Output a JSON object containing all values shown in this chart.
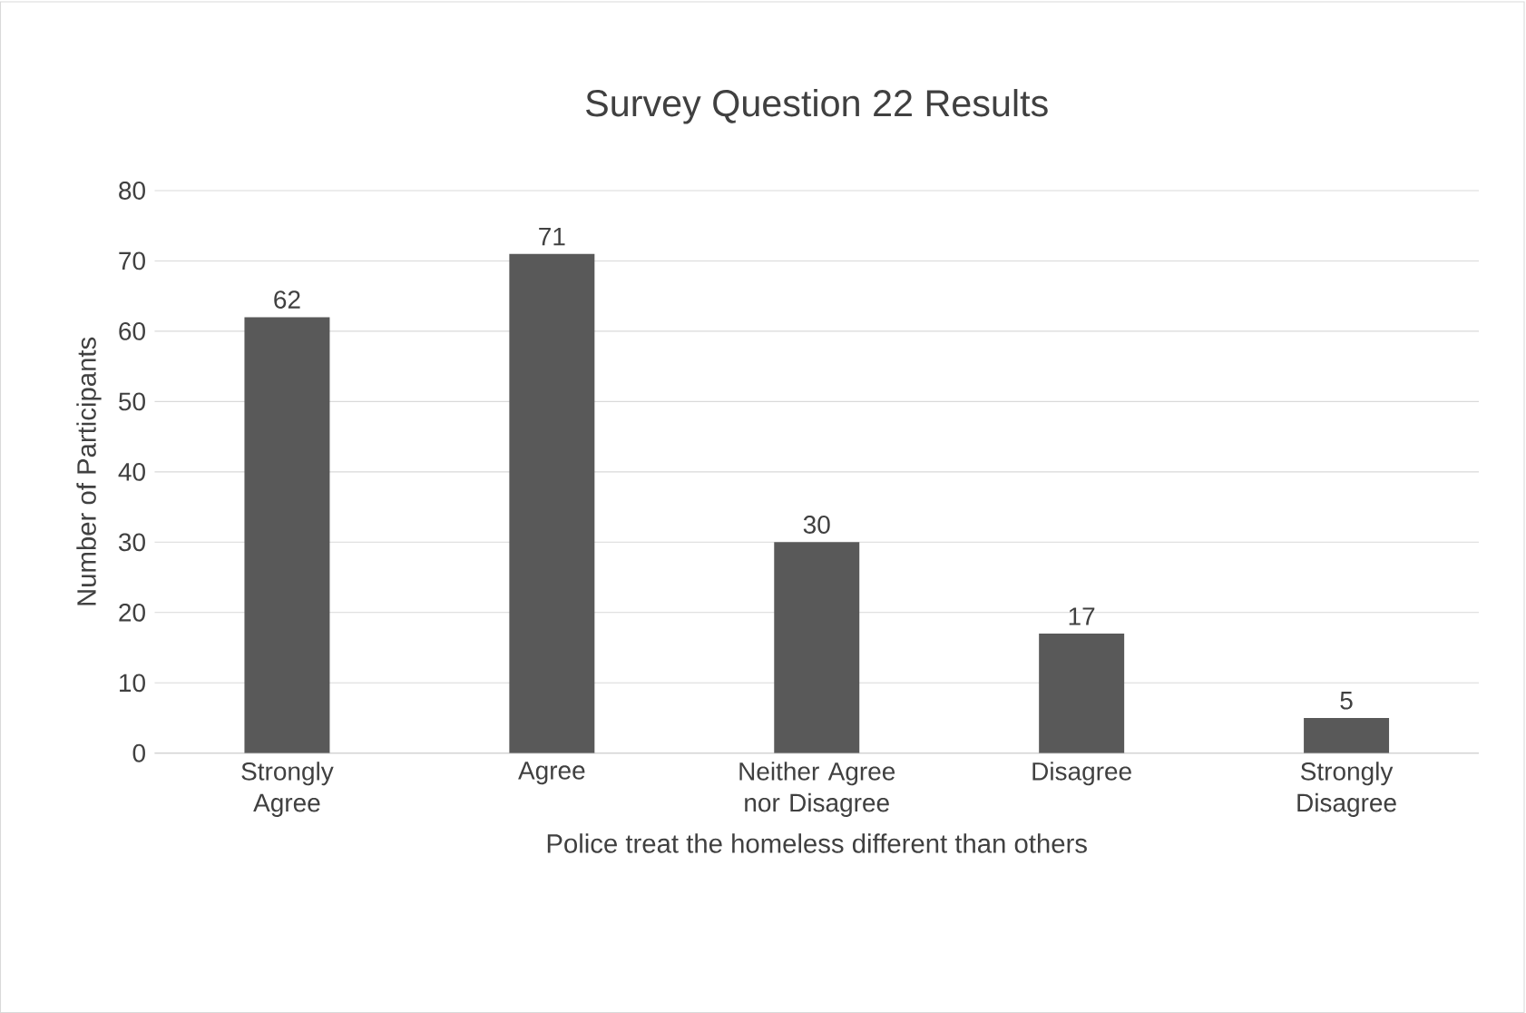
{
  "chart_data": {
    "type": "bar",
    "title": "Survey Question 22 Results",
    "xlabel": "Police treat the homeless different than others",
    "ylabel": "Number of Participants",
    "categories": [
      "Strongly Agree",
      "Agree",
      "Neither Agree nor Disagree",
      "Disagree",
      "Strongly Disagree"
    ],
    "values": [
      62,
      71,
      30,
      17,
      5
    ],
    "color": "#595959",
    "ylim": [
      0,
      80
    ],
    "yticks": [
      0,
      10,
      20,
      30,
      40,
      50,
      60,
      70,
      80
    ],
    "grid": "y",
    "data_labels": true
  }
}
